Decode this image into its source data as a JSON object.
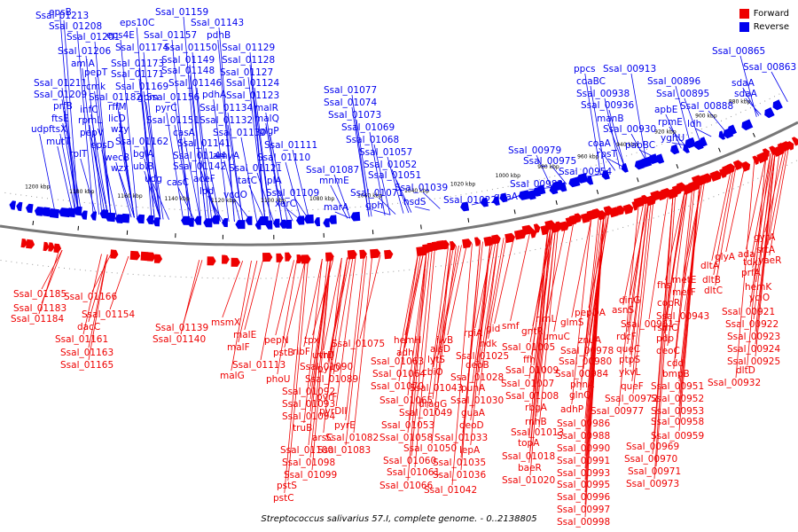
{
  "caption": "Streptococcus salivarius 57.I, complete genome. - 0..2138805",
  "legend": [
    {
      "label": "Forward",
      "color": "#ee0000"
    },
    {
      "label": "Reverse",
      "color": "#0000ee"
    }
  ],
  "colors": {
    "forward": "#ee0000",
    "reverse": "#0000ee",
    "backbone": "#777777"
  },
  "tick_labels": [
    {
      "text": "1200 kbp",
      "t": 0.035
    },
    {
      "text": "1180 kbp",
      "t": 0.085
    },
    {
      "text": "1160 kbp",
      "t": 0.14
    },
    {
      "text": "1140 kbp",
      "t": 0.195
    },
    {
      "text": "1120 kbp",
      "t": 0.25
    },
    {
      "text": "1100 kbp",
      "t": 0.31
    },
    {
      "text": "1080 kbp",
      "t": 0.37
    },
    {
      "text": "1060 kbp",
      "t": 0.43
    },
    {
      "text": "1040 kbp",
      "t": 0.49
    },
    {
      "text": "1020 kbp",
      "t": 0.55
    },
    {
      "text": "1000 kbp",
      "t": 0.61
    },
    {
      "text": "980 kbp",
      "t": 0.665
    },
    {
      "text": "960 kbp",
      "t": 0.72
    },
    {
      "text": "940 kbp",
      "t": 0.775
    },
    {
      "text": "920 kbp",
      "t": 0.83
    },
    {
      "text": "900 kbp",
      "t": 0.89
    },
    {
      "text": "880 kbp",
      "t": 0.94
    }
  ],
  "reverse_labels": [
    [
      "epsB",
      55,
      8
    ],
    [
      "Ssal_01159",
      175,
      8
    ],
    [
      "Ssal_01213",
      40,
      12
    ],
    [
      "eps10C",
      135,
      20
    ],
    [
      "Ssal_01143",
      215,
      20
    ],
    [
      "Ssal_01208",
      55,
      24
    ],
    [
      "Ssal_01201",
      75,
      36
    ],
    [
      "eps4E",
      120,
      34
    ],
    [
      "Ssal_01157",
      162,
      34
    ],
    [
      "pdhB",
      233,
      34
    ],
    [
      "Ssal_01206",
      65,
      52
    ],
    [
      "Ssal_01174",
      130,
      48
    ],
    [
      "Ssal_01150",
      185,
      48
    ],
    [
      "Ssal_01129",
      250,
      48
    ],
    [
      "amiA",
      80,
      66
    ],
    [
      "Ssal_01173",
      125,
      66
    ],
    [
      "Ssal_01149",
      182,
      62
    ],
    [
      "Ssal_01128",
      250,
      62
    ],
    [
      "pepT",
      95,
      76
    ],
    [
      "Ssal_01171",
      125,
      78
    ],
    [
      "Ssal_01148",
      182,
      74
    ],
    [
      "Ssal_01127",
      248,
      76
    ],
    [
      "Ssal_01211",
      38,
      88
    ],
    [
      "cmk",
      97,
      92
    ],
    [
      "Ssal_01169",
      130,
      92
    ],
    [
      "Ssal_01146",
      190,
      88
    ],
    [
      "Ssal_01124",
      255,
      88
    ],
    [
      "Ssal_01209",
      38,
      101
    ],
    [
      "Ssal_01182",
      100,
      104
    ],
    [
      "gpm",
      155,
      104
    ],
    [
      "Ssal_01156",
      165,
      104
    ],
    [
      "pdhA",
      228,
      101
    ],
    [
      "Ssal_01123",
      255,
      102
    ],
    [
      "prfB",
      60,
      114
    ],
    [
      "infC",
      90,
      118
    ],
    [
      "pyrC",
      175,
      116
    ],
    [
      "Ssal_01134",
      225,
      116
    ],
    [
      "malR",
      287,
      116
    ],
    [
      "ftsE",
      58,
      128
    ],
    [
      "rpmL",
      88,
      130
    ],
    [
      "rffM",
      122,
      115
    ],
    [
      "licD",
      122,
      128
    ],
    [
      "Ssal_01151",
      165,
      130
    ],
    [
      "Ssal_01132",
      225,
      130
    ],
    [
      "malQ",
      287,
      128
    ],
    [
      "udp",
      35,
      140
    ],
    [
      "ftsX",
      55,
      140
    ],
    [
      "pepV",
      90,
      144
    ],
    [
      "wzy",
      125,
      140
    ],
    [
      "casA",
      195,
      144
    ],
    [
      "Ssal_01130",
      240,
      144
    ],
    [
      "glgP",
      292,
      142
    ],
    [
      "mutT",
      52,
      154
    ],
    [
      "epsD",
      102,
      158
    ],
    [
      "Ssal_01162",
      130,
      154
    ],
    [
      "Ssal_01141",
      200,
      156
    ],
    [
      "Ssal_01111",
      298,
      158
    ],
    [
      "rplT",
      78,
      168
    ],
    [
      "wecB",
      118,
      172
    ],
    [
      "bglA",
      150,
      168
    ],
    [
      "Ssal_01144",
      195,
      170
    ],
    [
      "amyA",
      240,
      170
    ],
    [
      "Ssal_01110",
      290,
      172
    ],
    [
      "wzx",
      125,
      184
    ],
    [
      "ubiB",
      150,
      182
    ],
    [
      "Ssal_01142",
      195,
      182
    ],
    [
      "Ssal_01121",
      258,
      184
    ],
    [
      "Ssal_01087",
      345,
      186
    ],
    [
      "udg",
      163,
      196
    ],
    [
      "casC",
      188,
      200
    ],
    [
      "aceF",
      218,
      196
    ],
    [
      "tatC",
      268,
      198
    ],
    [
      "lplA",
      298,
      198
    ],
    [
      "mnmE",
      360,
      198
    ],
    [
      "Ssal_01071",
      395,
      212
    ],
    [
      "lpd",
      225,
      210
    ],
    [
      "vcdO",
      252,
      214
    ],
    [
      "Ssal_01109",
      300,
      212
    ],
    [
      "Ssal_01022",
      500,
      220
    ],
    [
      "guaA",
      557,
      216
    ],
    [
      "xerC",
      310,
      224
    ],
    [
      "marA",
      365,
      228
    ],
    [
      "gph",
      412,
      226
    ],
    [
      "hsdS",
      455,
      222
    ],
    [
      "Ssal_01077",
      365,
      96
    ],
    [
      "Ssal_01074",
      365,
      110
    ],
    [
      "Ssal_01073",
      370,
      124
    ],
    [
      "Ssal_01069",
      385,
      138
    ],
    [
      "Ssal_01068",
      390,
      152
    ],
    [
      "Ssal_01057",
      405,
      166
    ],
    [
      "Ssal_01052",
      410,
      180
    ],
    [
      "Ssal_01051",
      415,
      192
    ],
    [
      "Ssal_01039",
      445,
      206
    ],
    [
      "Ssal_00979",
      573,
      164
    ],
    [
      "Ssal_00975",
      590,
      176
    ],
    [
      "Ssal_00982",
      575,
      202
    ],
    [
      "Ssal_00954",
      630,
      188
    ],
    [
      "ppcs",
      647,
      72
    ],
    [
      "Ssal_00913",
      680,
      72
    ],
    [
      "coaBC",
      650,
      86
    ],
    [
      "Ssal_00938",
      650,
      100
    ],
    [
      "Ssal_00936",
      655,
      113
    ],
    [
      "manB",
      673,
      128
    ],
    [
      "Ssal_00930",
      680,
      140
    ],
    [
      "coaA",
      663,
      156
    ],
    [
      "rpsT",
      673,
      168
    ],
    [
      "pabBC",
      705,
      158
    ],
    [
      "Ssal_00896",
      730,
      86
    ],
    [
      "Ssal_00895",
      740,
      100
    ],
    [
      "Ssal_00888",
      767,
      114
    ],
    [
      "apbE",
      738,
      118
    ],
    [
      "rpmE",
      742,
      132
    ],
    [
      "ldh",
      775,
      134
    ],
    [
      "yghU",
      745,
      150
    ],
    [
      "Ssal_00865",
      803,
      52
    ],
    [
      "Ssal_00863",
      838,
      70
    ],
    [
      "sdaA",
      825,
      88
    ],
    [
      "sdaA",
      828,
      100
    ]
  ],
  "forward_labels": [
    [
      "Ssal_01185",
      15,
      326
    ],
    [
      "Ssal_01166",
      72,
      329
    ],
    [
      "Ssal_01183",
      15,
      342
    ],
    [
      "dacC",
      87,
      363
    ],
    [
      "Ssal_01184",
      12,
      354
    ],
    [
      "Ssal_01154",
      92,
      349
    ],
    [
      "Ssal_01161",
      62,
      377
    ],
    [
      "Ssal_01163",
      68,
      392
    ],
    [
      "Ssal_01165",
      68,
      406
    ],
    [
      "Ssal_01139",
      175,
      364
    ],
    [
      "Ssal_01140",
      172,
      377
    ],
    [
      "msmX",
      238,
      358
    ],
    [
      "malE",
      263,
      372
    ],
    [
      "malF",
      256,
      386
    ],
    [
      "Ssal_01113",
      262,
      406
    ],
    [
      "malG",
      248,
      418
    ],
    [
      "pepN",
      298,
      378
    ],
    [
      "pstB",
      308,
      392
    ],
    [
      "phoU",
      300,
      422
    ],
    [
      "Ssal_01092",
      318,
      436
    ],
    [
      "Ssal_01093",
      318,
      450
    ],
    [
      "Ssal_01094",
      318,
      464
    ],
    [
      "truB",
      330,
      477
    ],
    [
      "Ssal_01100",
      316,
      502
    ],
    [
      "Ssal_01098",
      318,
      516
    ],
    [
      "Ssal_01099",
      320,
      530
    ],
    [
      "pstS",
      312,
      542
    ],
    [
      "pstC",
      308,
      556
    ],
    [
      "tpx",
      343,
      378
    ],
    [
      "ribF",
      330,
      391
    ],
    [
      "uvrD",
      352,
      395
    ],
    [
      "Ssal_01090",
      338,
      408
    ],
    [
      "Ssal_01089",
      344,
      422
    ],
    [
      "thiJ",
      360,
      395
    ],
    [
      "pyrD",
      358,
      410
    ],
    [
      "pyrF",
      357,
      442
    ],
    [
      "pyrDII",
      360,
      458
    ],
    [
      "pyrE",
      377,
      474
    ],
    [
      "arsC",
      352,
      488
    ],
    [
      "Ssal_01075",
      374,
      382
    ],
    [
      "Ssal_01082",
      367,
      488
    ],
    [
      "Ssal_01083",
      358,
      502
    ],
    [
      "hemH",
      444,
      378
    ],
    [
      "adh",
      447,
      392
    ],
    [
      "Ssal_01063",
      418,
      402
    ],
    [
      "Ssal_01064",
      420,
      416
    ],
    [
      "Ssal_01070",
      418,
      430
    ],
    [
      "Ssal_01065",
      428,
      446
    ],
    [
      "Ssal_01053",
      430,
      474
    ],
    [
      "Ssal_01058",
      428,
      488
    ],
    [
      "Ssal_01060",
      432,
      514
    ],
    [
      "Ssal_01061",
      436,
      527
    ],
    [
      "Ssal_01066",
      428,
      542
    ],
    [
      "ilvB",
      492,
      378
    ],
    [
      "alsD",
      485,
      388
    ],
    [
      "lytS",
      482,
      400
    ],
    [
      "cbiO",
      476,
      414
    ],
    [
      "Ssal_01043",
      462,
      432
    ],
    [
      "dragG",
      472,
      450
    ],
    [
      "Ssal_01049",
      450,
      460
    ],
    [
      "Ssal_01050",
      455,
      500
    ],
    [
      "Ssal_01042",
      478,
      547
    ],
    [
      "rpiA",
      523,
      370
    ],
    [
      "gid",
      548,
      365
    ],
    [
      "ndk",
      541,
      382
    ],
    [
      "Ssal_01025",
      514,
      396
    ],
    [
      "deoB",
      525,
      406
    ],
    [
      "Ssal_01028",
      508,
      420
    ],
    [
      "punA",
      520,
      432
    ],
    [
      "Ssal_01030",
      508,
      446
    ],
    [
      "guaA",
      520,
      460
    ],
    [
      "deoD",
      518,
      474
    ],
    [
      "Ssal_01033",
      490,
      488
    ],
    [
      "lepA",
      518,
      502
    ],
    [
      "Ssal_01035",
      488,
      516
    ],
    [
      "Ssal_01036",
      488,
      530
    ],
    [
      "smf",
      566,
      362
    ],
    [
      "gntR",
      588,
      368
    ],
    [
      "rimL",
      604,
      354
    ],
    [
      "Ssal_01005",
      566,
      386
    ],
    [
      "ffh",
      590,
      400
    ],
    [
      "Ssal_01009",
      570,
      412
    ],
    [
      "Ssal_01007",
      565,
      427
    ],
    [
      "Ssal_01008",
      570,
      441
    ],
    [
      "rbgA",
      592,
      454
    ],
    [
      "rnhB",
      592,
      470
    ],
    [
      "Ssal_01013",
      576,
      482
    ],
    [
      "topA",
      584,
      494
    ],
    [
      "Ssal_01018",
      566,
      509
    ],
    [
      "baeR",
      584,
      522
    ],
    [
      "Ssal_01020",
      566,
      536
    ],
    [
      "glmS",
      632,
      358
    ],
    [
      "umuC",
      612,
      374
    ],
    [
      "pepDA",
      648,
      347
    ],
    [
      "znuA",
      652,
      378
    ],
    [
      "Ssal_00978",
      632,
      390
    ],
    [
      "Ssal_00980",
      630,
      402
    ],
    [
      "Ssal_00984",
      626,
      416
    ],
    [
      "phnA",
      643,
      428
    ],
    [
      "glnQ",
      642,
      440
    ],
    [
      "adhP",
      632,
      456
    ],
    [
      "Ssal_00986",
      628,
      472
    ],
    [
      "Ssal_00988",
      628,
      486
    ],
    [
      "Ssal_00990",
      628,
      500
    ],
    [
      "Ssal_00991",
      628,
      514
    ],
    [
      "Ssal_00993",
      628,
      528
    ],
    [
      "Ssal_00995",
      628,
      541
    ],
    [
      "Ssal_00996",
      628,
      555
    ],
    [
      "Ssal_00997",
      628,
      569
    ],
    [
      "Ssal_00998",
      628,
      583
    ],
    [
      "dinG",
      698,
      333
    ],
    [
      "asnS",
      690,
      344
    ],
    [
      "Ssal_00961",
      700,
      360
    ],
    [
      "rdcF",
      695,
      374
    ],
    [
      "queC",
      695,
      388
    ],
    [
      "ptpS",
      698,
      400
    ],
    [
      "ykvL",
      698,
      414
    ],
    [
      "queF",
      700,
      430
    ],
    [
      "Ssal_00972",
      682,
      444
    ],
    [
      "Ssal_00977",
      666,
      458
    ],
    [
      "Ssal_00969",
      706,
      498
    ],
    [
      "Ssal_00970",
      704,
      512
    ],
    [
      "Ssal_00971",
      708,
      526
    ],
    [
      "Ssal_00973",
      706,
      540
    ],
    [
      "fhs",
      741,
      316
    ],
    [
      "copR",
      741,
      336
    ],
    [
      "Ssal_00943",
      740,
      351
    ],
    [
      "rsmC",
      737,
      364
    ],
    [
      "pdp",
      740,
      376
    ],
    [
      "deoC",
      740,
      390
    ],
    [
      "cdd",
      752,
      404
    ],
    [
      "bmpB",
      747,
      416
    ],
    [
      "Ssal_00951",
      734,
      430
    ],
    [
      "Ssal_00952",
      734,
      444
    ],
    [
      "Ssal_00953",
      734,
      458
    ],
    [
      "Ssal_00958",
      734,
      470
    ],
    [
      "Ssal_00959",
      734,
      486
    ],
    [
      "metE",
      758,
      310
    ],
    [
      "metF",
      758,
      324
    ],
    [
      "dltA",
      790,
      294
    ],
    [
      "dltB",
      792,
      310
    ],
    [
      "dltC",
      794,
      322
    ],
    [
      "glyA",
      806,
      284
    ],
    [
      "ada",
      832,
      281
    ],
    [
      "prfA",
      836,
      302
    ],
    [
      "hemK",
      840,
      318
    ],
    [
      "yciO",
      845,
      330
    ],
    [
      "srtA",
      853,
      276
    ],
    [
      "tdk",
      838,
      290
    ],
    [
      "yaeR",
      855,
      288
    ],
    [
      "gyrA",
      850,
      262
    ],
    [
      "Ssal_00921",
      814,
      346
    ],
    [
      "Ssal_00922",
      818,
      360
    ],
    [
      "Ssal_00923",
      820,
      374
    ],
    [
      "Ssal_00924",
      820,
      388
    ],
    [
      "Ssal_00925",
      820,
      402
    ],
    [
      "dltD",
      830,
      412
    ],
    [
      "Ssal_00932",
      798,
      426
    ]
  ]
}
